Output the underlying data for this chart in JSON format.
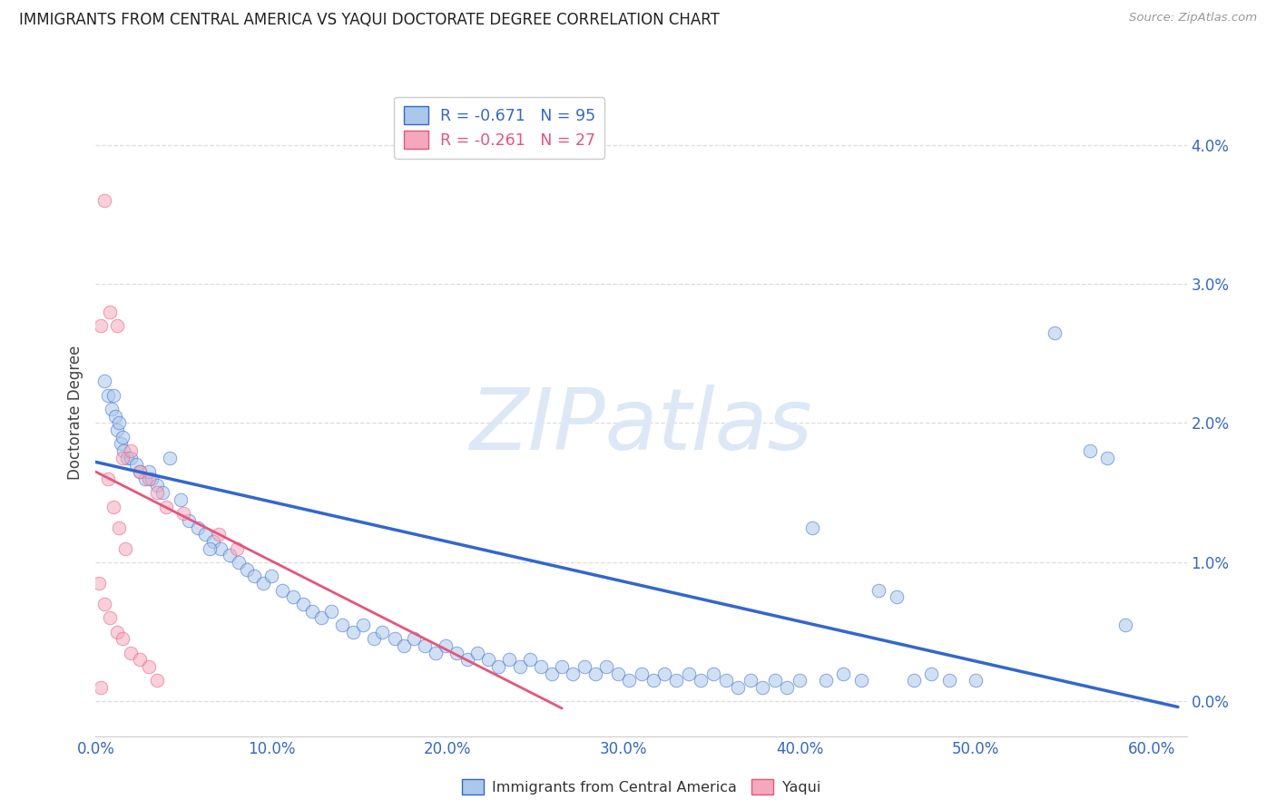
{
  "title": "IMMIGRANTS FROM CENTRAL AMERICA VS YAQUI DOCTORATE DEGREE CORRELATION CHART",
  "source": "Source: ZipAtlas.com",
  "ylabel": "Doctorate Degree",
  "xlim": [
    0.0,
    62.0
  ],
  "ylim": [
    -0.25,
    4.4
  ],
  "ytick_values": [
    0.0,
    1.0,
    2.0,
    3.0,
    4.0
  ],
  "xtick_values": [
    0.0,
    10.0,
    20.0,
    30.0,
    40.0,
    50.0,
    60.0
  ],
  "legend_blue_label": "R = -0.671   N = 95",
  "legend_pink_label": "R = -0.261   N = 27",
  "legend_blue_fill": "#aac8ea",
  "legend_pink_fill": "#f5a8bc",
  "blue_color": "#3367cd",
  "pink_color": "#e8547a",
  "watermark_text": "ZIPatlas",
  "watermark_color": "#dce8f5",
  "background_color": "#ffffff",
  "grid_color": "#dddddd",
  "axis_tick_color": "#3367cd",
  "title_color": "#222222",
  "scatter_size": 110,
  "scatter_alpha": 0.55,
  "blue_scatter_x": [
    0.5,
    0.7,
    0.9,
    1.0,
    1.1,
    1.2,
    1.3,
    1.4,
    1.5,
    1.6,
    1.8,
    2.0,
    2.3,
    2.5,
    2.8,
    3.2,
    3.5,
    3.8,
    4.2,
    4.8,
    5.3,
    5.8,
    6.2,
    6.7,
    7.1,
    7.6,
    8.1,
    8.6,
    9.0,
    9.5,
    10.0,
    10.6,
    11.2,
    11.8,
    12.3,
    12.8,
    13.4,
    14.0,
    14.6,
    15.2,
    15.8,
    16.3,
    17.0,
    17.5,
    18.1,
    18.7,
    19.3,
    19.9,
    20.5,
    21.1,
    21.7,
    22.3,
    22.9,
    23.5,
    24.1,
    24.7,
    25.3,
    25.9,
    26.5,
    27.1,
    27.8,
    28.4,
    29.0,
    29.7,
    30.3,
    31.0,
    31.7,
    32.3,
    33.0,
    33.7,
    34.4,
    35.1,
    35.8,
    36.5,
    37.2,
    37.9,
    38.6,
    39.3,
    40.0,
    40.7,
    41.5,
    42.5,
    43.5,
    44.5,
    45.5,
    46.5,
    47.5,
    48.5,
    50.0,
    54.5,
    56.5,
    57.5,
    58.5,
    3.0,
    6.5
  ],
  "blue_scatter_y": [
    2.3,
    2.2,
    2.1,
    2.2,
    2.05,
    1.95,
    2.0,
    1.85,
    1.9,
    1.8,
    1.75,
    1.75,
    1.7,
    1.65,
    1.6,
    1.6,
    1.55,
    1.5,
    1.75,
    1.45,
    1.3,
    1.25,
    1.2,
    1.15,
    1.1,
    1.05,
    1.0,
    0.95,
    0.9,
    0.85,
    0.9,
    0.8,
    0.75,
    0.7,
    0.65,
    0.6,
    0.65,
    0.55,
    0.5,
    0.55,
    0.45,
    0.5,
    0.45,
    0.4,
    0.45,
    0.4,
    0.35,
    0.4,
    0.35,
    0.3,
    0.35,
    0.3,
    0.25,
    0.3,
    0.25,
    0.3,
    0.25,
    0.2,
    0.25,
    0.2,
    0.25,
    0.2,
    0.25,
    0.2,
    0.15,
    0.2,
    0.15,
    0.2,
    0.15,
    0.2,
    0.15,
    0.2,
    0.15,
    0.1,
    0.15,
    0.1,
    0.15,
    0.1,
    0.15,
    1.25,
    0.15,
    0.2,
    0.15,
    0.8,
    0.75,
    0.15,
    0.2,
    0.15,
    0.15,
    2.65,
    1.8,
    1.75,
    0.55,
    1.65,
    1.1
  ],
  "pink_scatter_x": [
    0.5,
    0.8,
    1.2,
    1.5,
    2.0,
    2.5,
    3.0,
    3.5,
    4.0,
    5.0,
    7.0,
    8.0,
    0.3,
    0.7,
    1.0,
    1.3,
    1.7,
    0.2,
    0.5,
    0.8,
    1.2,
    1.5,
    2.0,
    2.5,
    3.0,
    3.5,
    0.3
  ],
  "pink_scatter_y": [
    3.6,
    2.8,
    2.7,
    1.75,
    1.8,
    1.65,
    1.6,
    1.5,
    1.4,
    1.35,
    1.2,
    1.1,
    2.7,
    1.6,
    1.4,
    1.25,
    1.1,
    0.85,
    0.7,
    0.6,
    0.5,
    0.45,
    0.35,
    0.3,
    0.25,
    0.15,
    0.1
  ],
  "blue_trend_x": [
    0.0,
    61.5
  ],
  "blue_trend_y": [
    1.72,
    -0.04
  ],
  "pink_trend_x": [
    0.0,
    26.5
  ],
  "pink_trend_y": [
    1.65,
    -0.05
  ],
  "bottom_legend_labels": [
    "Immigrants from Central America",
    "Yaqui"
  ]
}
